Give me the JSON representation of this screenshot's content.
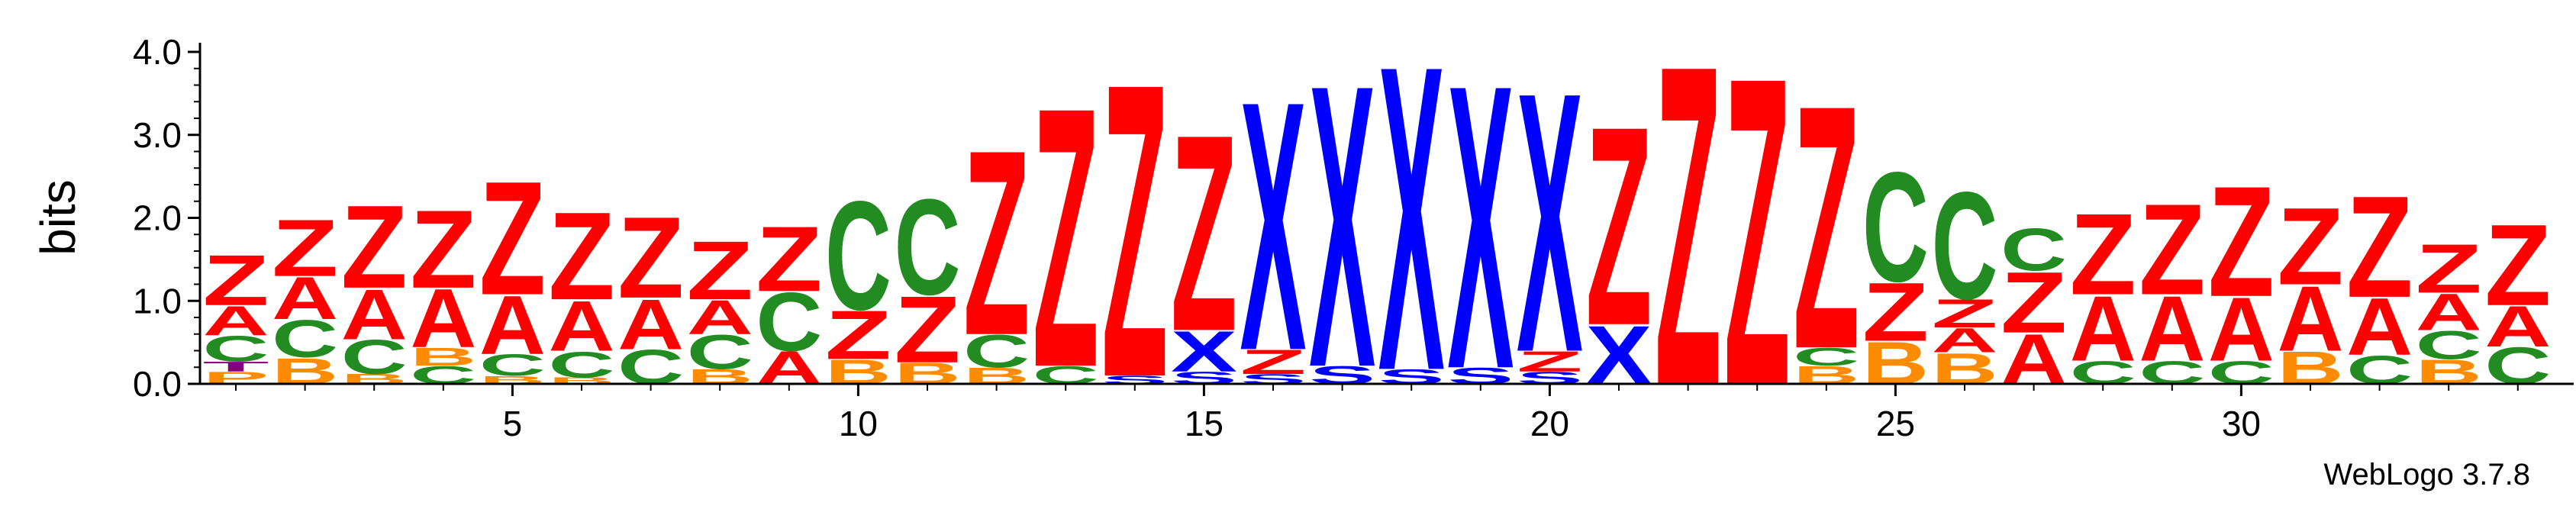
{
  "chart_data": {
    "type": "sequence-logo",
    "ylabel": "bits",
    "ylim": [
      0,
      4.0
    ],
    "y_ticks": [
      "0.0",
      "1.0",
      "2.0",
      "3.0",
      "4.0"
    ],
    "x_range": [
      1,
      34
    ],
    "x_ticks": [
      "5",
      "10",
      "15",
      "20",
      "25",
      "30"
    ],
    "watermark": "WebLogo 3.7.8",
    "colors": {
      "Z": "#ff0000",
      "A": "#ff0000",
      "X": "#0000ff",
      "C": "#228b22",
      "B": "#ff8c00",
      "S": "#0000ff",
      "T": "#800080",
      "P": "#ff8c00"
    },
    "columns": [
      {
        "pos": 1,
        "stack": [
          {
            "l": "P",
            "h": 0.15
          },
          {
            "l": "T",
            "h": 0.12
          },
          {
            "l": "C",
            "h": 0.32
          },
          {
            "l": "A",
            "h": 0.36
          },
          {
            "l": "Z",
            "h": 0.62
          }
        ]
      },
      {
        "pos": 2,
        "stack": [
          {
            "l": "B",
            "h": 0.32
          },
          {
            "l": "C",
            "h": 0.46
          },
          {
            "l": "A",
            "h": 0.52
          },
          {
            "l": "Z",
            "h": 0.7
          }
        ]
      },
      {
        "pos": 3,
        "stack": [
          {
            "l": "B",
            "h": 0.12
          },
          {
            "l": "C",
            "h": 0.42
          },
          {
            "l": "A",
            "h": 0.62
          },
          {
            "l": "Z",
            "h": 1.02
          }
        ]
      },
      {
        "pos": 4,
        "stack": [
          {
            "l": "C",
            "h": 0.22
          },
          {
            "l": "B",
            "h": 0.22
          },
          {
            "l": "A",
            "h": 0.72
          },
          {
            "l": "Z",
            "h": 0.96
          }
        ]
      },
      {
        "pos": 5,
        "stack": [
          {
            "l": "B",
            "h": 0.1
          },
          {
            "l": "C",
            "h": 0.26
          },
          {
            "l": "A",
            "h": 0.72
          },
          {
            "l": "Z",
            "h": 1.4
          }
        ]
      },
      {
        "pos": 6,
        "stack": [
          {
            "l": "B",
            "h": 0.08
          },
          {
            "l": "C",
            "h": 0.32
          },
          {
            "l": "A",
            "h": 0.62
          },
          {
            "l": "Z",
            "h": 1.08
          }
        ]
      },
      {
        "pos": 7,
        "stack": [
          {
            "l": "C",
            "h": 0.42
          },
          {
            "l": "A",
            "h": 0.62
          },
          {
            "l": "Z",
            "h": 1.0
          }
        ]
      },
      {
        "pos": 8,
        "stack": [
          {
            "l": "B",
            "h": 0.18
          },
          {
            "l": "C",
            "h": 0.42
          },
          {
            "l": "A",
            "h": 0.42
          },
          {
            "l": "Z",
            "h": 0.72
          }
        ]
      },
      {
        "pos": 9,
        "stack": [
          {
            "l": "A",
            "h": 0.4
          },
          {
            "l": "C",
            "h": 0.72
          },
          {
            "l": "Z",
            "h": 0.8
          }
        ]
      },
      {
        "pos": 10,
        "stack": [
          {
            "l": "B",
            "h": 0.3
          },
          {
            "l": "Z",
            "h": 0.6
          },
          {
            "l": "C",
            "h": 1.34
          }
        ]
      },
      {
        "pos": 11,
        "stack": [
          {
            "l": "B",
            "h": 0.26
          },
          {
            "l": "Z",
            "h": 0.82
          },
          {
            "l": "C",
            "h": 1.18
          }
        ]
      },
      {
        "pos": 12,
        "stack": [
          {
            "l": "B",
            "h": 0.2
          },
          {
            "l": "C",
            "h": 0.4
          },
          {
            "l": "Z",
            "h": 2.28
          }
        ]
      },
      {
        "pos": 13,
        "stack": [
          {
            "l": "C",
            "h": 0.22
          },
          {
            "l": "Z",
            "h": 3.2
          }
        ]
      },
      {
        "pos": 14,
        "stack": [
          {
            "l": "S",
            "h": 0.1
          },
          {
            "l": "Z",
            "h": 3.62
          }
        ]
      },
      {
        "pos": 15,
        "stack": [
          {
            "l": "S",
            "h": 0.15
          },
          {
            "l": "X",
            "h": 0.5
          },
          {
            "l": "Z",
            "h": 2.42
          }
        ]
      },
      {
        "pos": 16,
        "stack": [
          {
            "l": "S",
            "h": 0.12
          },
          {
            "l": "Z",
            "h": 0.3
          },
          {
            "l": "X",
            "h": 3.07
          }
        ]
      },
      {
        "pos": 17,
        "stack": [
          {
            "l": "S",
            "h": 0.22
          },
          {
            "l": "X",
            "h": 3.48
          }
        ]
      },
      {
        "pos": 18,
        "stack": [
          {
            "l": "S",
            "h": 0.18
          },
          {
            "l": "X",
            "h": 3.76
          }
        ]
      },
      {
        "pos": 19,
        "stack": [
          {
            "l": "S",
            "h": 0.2
          },
          {
            "l": "X",
            "h": 3.5
          }
        ]
      },
      {
        "pos": 20,
        "stack": [
          {
            "l": "S",
            "h": 0.15
          },
          {
            "l": "Z",
            "h": 0.25
          },
          {
            "l": "X",
            "h": 3.2
          }
        ]
      },
      {
        "pos": 21,
        "stack": [
          {
            "l": "X",
            "h": 0.72
          },
          {
            "l": "Z",
            "h": 2.45
          }
        ]
      },
      {
        "pos": 22,
        "stack": [
          {
            "l": "Z",
            "h": 3.95
          }
        ]
      },
      {
        "pos": 23,
        "stack": [
          {
            "l": "Z",
            "h": 3.8
          }
        ]
      },
      {
        "pos": 24,
        "stack": [
          {
            "l": "B",
            "h": 0.22
          },
          {
            "l": "C",
            "h": 0.22
          },
          {
            "l": "Z",
            "h": 3.0
          }
        ]
      },
      {
        "pos": 25,
        "stack": [
          {
            "l": "B",
            "h": 0.52
          },
          {
            "l": "Z",
            "h": 0.72
          },
          {
            "l": "C",
            "h": 1.35
          }
        ]
      },
      {
        "pos": 26,
        "stack": [
          {
            "l": "B",
            "h": 0.38
          },
          {
            "l": "A",
            "h": 0.3
          },
          {
            "l": "Z",
            "h": 0.35
          },
          {
            "l": "C",
            "h": 1.32
          }
        ]
      },
      {
        "pos": 27,
        "stack": [
          {
            "l": "A",
            "h": 0.62
          },
          {
            "l": "Z",
            "h": 0.75
          },
          {
            "l": "C",
            "h": 0.52
          }
        ]
      },
      {
        "pos": 28,
        "stack": [
          {
            "l": "C",
            "h": 0.28
          },
          {
            "l": "A",
            "h": 0.8
          },
          {
            "l": "Z",
            "h": 1.0
          }
        ]
      },
      {
        "pos": 29,
        "stack": [
          {
            "l": "C",
            "h": 0.28
          },
          {
            "l": "A",
            "h": 0.8
          },
          {
            "l": "Z",
            "h": 1.12
          }
        ]
      },
      {
        "pos": 30,
        "stack": [
          {
            "l": "C",
            "h": 0.28
          },
          {
            "l": "A",
            "h": 0.78
          },
          {
            "l": "Z",
            "h": 1.36
          }
        ]
      },
      {
        "pos": 31,
        "stack": [
          {
            "l": "B",
            "h": 0.4
          },
          {
            "l": "A",
            "h": 0.8
          },
          {
            "l": "Z",
            "h": 0.95
          }
        ]
      },
      {
        "pos": 32,
        "stack": [
          {
            "l": "C",
            "h": 0.35
          },
          {
            "l": "A",
            "h": 0.7
          },
          {
            "l": "Z",
            "h": 1.25
          }
        ]
      },
      {
        "pos": 33,
        "stack": [
          {
            "l": "B",
            "h": 0.3
          },
          {
            "l": "C",
            "h": 0.35
          },
          {
            "l": "A",
            "h": 0.45
          },
          {
            "l": "Z",
            "h": 0.6
          }
        ]
      },
      {
        "pos": 34,
        "stack": [
          {
            "l": "C",
            "h": 0.45
          },
          {
            "l": "A",
            "h": 0.5
          },
          {
            "l": "Z",
            "h": 1.0
          }
        ]
      }
    ]
  }
}
